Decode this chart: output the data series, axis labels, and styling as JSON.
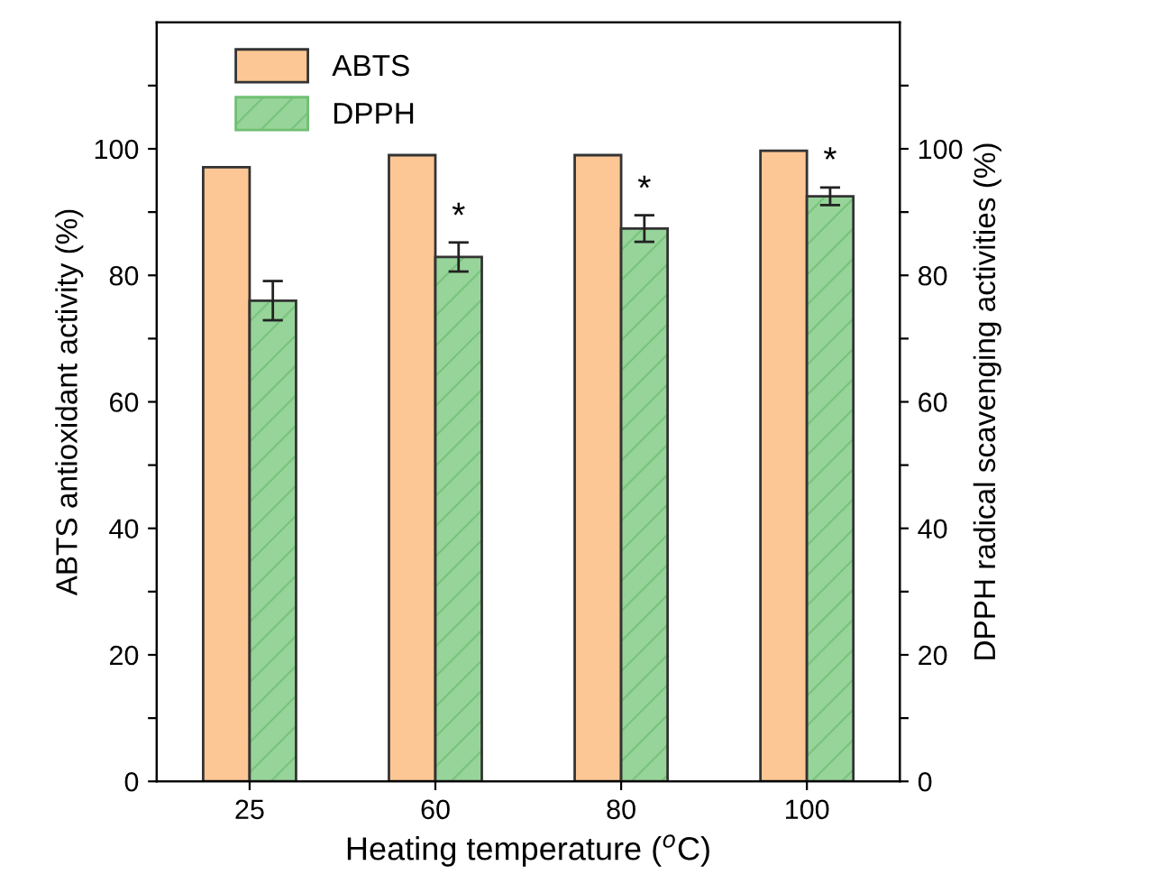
{
  "chart_data": {
    "type": "bar",
    "categories": [
      "25",
      "60",
      "80",
      "100"
    ],
    "xlabel": "Heating temperature ($^{o}$C)",
    "ylabel": "ABTS antioxidant activity (%)",
    "y2label": "DPPH radical scavenging activities (%)",
    "series": [
      {
        "name": "ABTS",
        "color": "#fcc794",
        "values": [
          97.1,
          99.0,
          99.0,
          99.7
        ]
      },
      {
        "name": "DPPH",
        "color": "#97d49a",
        "axis": "y2",
        "values": [
          76.0,
          82.9,
          87.4,
          92.5
        ],
        "errors": [
          3.1,
          2.3,
          2.1,
          1.4
        ]
      }
    ],
    "ylim": [
      0,
      120
    ],
    "yticks": [
      0,
      {
        "value": 10,
        "label": null
      },
      20,
      {
        "value": 30,
        "label": null
      },
      40,
      {
        "value": 50,
        "label": null
      },
      60,
      {
        "value": 70,
        "label": null
      },
      80,
      {
        "value": 90,
        "label": null
      },
      100,
      {
        "value": 110,
        "label": null
      }
    ],
    "y2lim": [
      0,
      120
    ],
    "y2ticks": [
      0,
      {
        "value": 10,
        "label": null
      },
      20,
      {
        "value": 30,
        "label": null
      },
      40,
      {
        "value": 50,
        "label": null
      },
      60,
      {
        "value": 70,
        "label": null
      },
      80,
      {
        "value": 90,
        "label": null
      },
      100,
      {
        "value": 110,
        "label": null
      }
    ],
    "annotations": [
      {
        "text": "*",
        "x": "60",
        "y": 86.5
      },
      {
        "text": "*",
        "x": "80",
        "y": 90.8
      },
      {
        "text": "*",
        "x": "100",
        "y": 95.3
      }
    ],
    "legend": "top left",
    "grid": false
  }
}
